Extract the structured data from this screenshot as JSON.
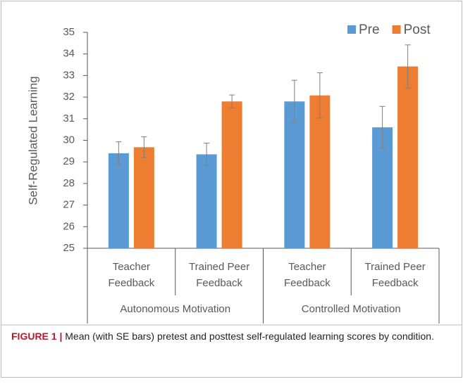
{
  "chart_data": {
    "type": "bar",
    "ylabel": "Self-Regulated Learning",
    "categories": [
      [
        "Teacher",
        "Feedback"
      ],
      [
        "Trained Peer",
        "Feedback"
      ],
      [
        "Teacher",
        "Feedback"
      ],
      [
        "Trained Peer",
        "Feedback"
      ]
    ],
    "groups": [
      "Autonomous Motivation",
      "Controlled Motivation"
    ],
    "series": [
      {
        "name": "Pre",
        "color": "#5b9bd5",
        "values": [
          29.4,
          29.35,
          31.8,
          30.6
        ],
        "errors": [
          0.53,
          0.52,
          0.98,
          0.97
        ]
      },
      {
        "name": "Post",
        "color": "#ed7d31",
        "values": [
          29.68,
          31.8,
          32.08,
          33.42
        ],
        "errors": [
          0.48,
          0.3,
          1.05,
          1.0
        ]
      }
    ],
    "ylim": [
      25,
      35
    ],
    "yticks": [
      25,
      26,
      27,
      28,
      29,
      30,
      31,
      32,
      33,
      34,
      35
    ],
    "legend": "top-right",
    "caption_label": "FIGURE 1 |",
    "caption_text": "Mean (with SE bars) pretest and posttest self-regulated learning scores by condition."
  }
}
